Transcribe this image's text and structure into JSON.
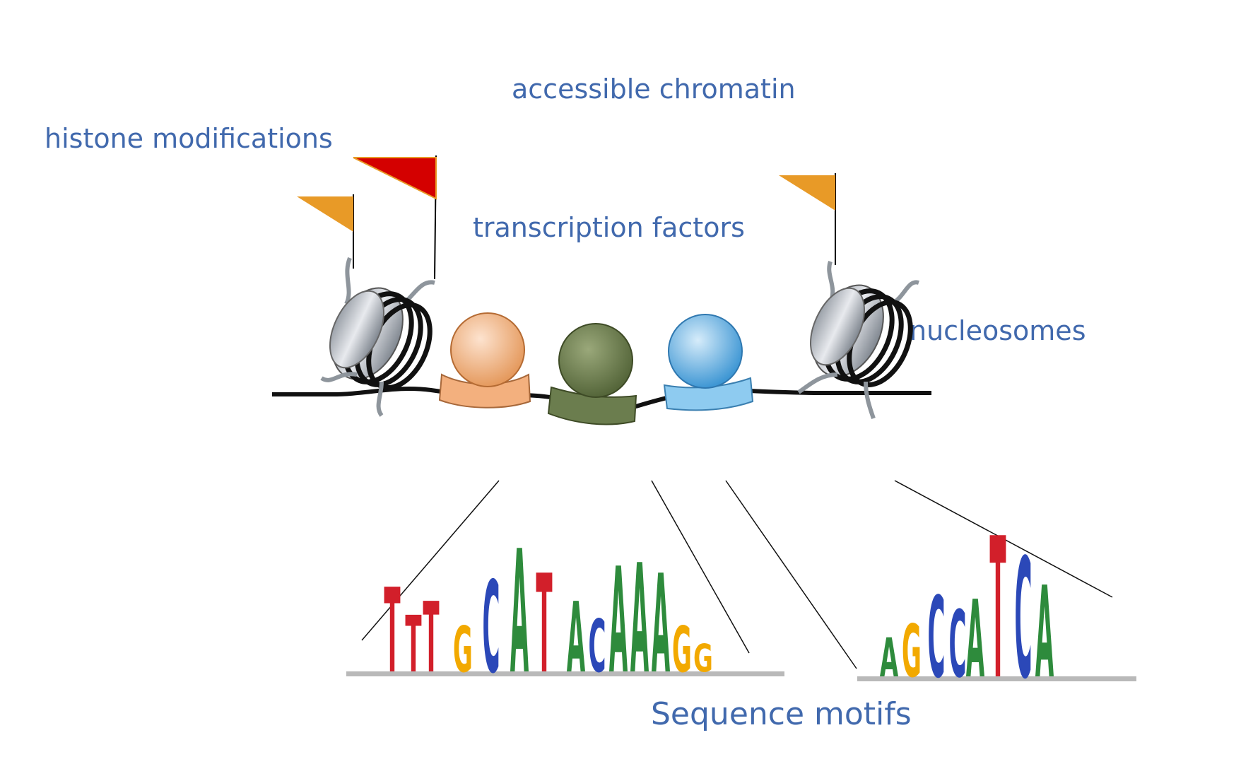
{
  "labels": {
    "accessible_chromatin": "accessible chromatin",
    "histone_modifications": "histone modifications",
    "transcription_factors": "transcription factors",
    "nucleosomes": "nucleosomes",
    "sequence_motifs": "Sequence motifs"
  },
  "colors": {
    "label_text": "#4169ad",
    "flag_orange": "#e89a27",
    "flag_red": "#d40000",
    "tf_orange": "#f3b07e",
    "tf_green": "#6b7d4e",
    "tf_blue": "#5aa9dc",
    "dna_a": "#2e8b3c",
    "dna_c": "#2b48b8",
    "dna_g": "#f2a900",
    "dna_t": "#d21f2a"
  },
  "motifs": [
    {
      "name": "motif-left",
      "letters": [
        "T",
        "T",
        "T",
        "G",
        "C",
        "A",
        "T",
        "A",
        "C",
        "A",
        "A",
        "A",
        "G",
        "G"
      ]
    },
    {
      "name": "motif-right",
      "letters": [
        "A",
        "G",
        "C",
        "C",
        "A",
        "T",
        "C",
        "A"
      ]
    }
  ]
}
